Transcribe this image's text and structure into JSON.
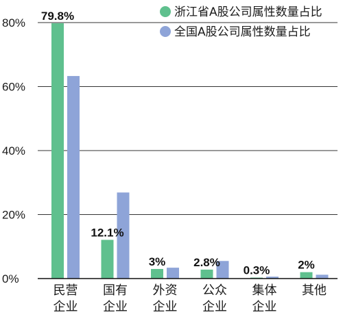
{
  "chart_data": {
    "type": "bar",
    "categories": [
      [
        "民营",
        "企业"
      ],
      [
        "国有",
        "企业"
      ],
      [
        "外资",
        "企业"
      ],
      [
        "公众",
        "企业"
      ],
      [
        "集体",
        "企业"
      ],
      [
        "其他"
      ]
    ],
    "series": [
      {
        "name": "浙江省A股公司属性数量占比",
        "color": "#5fc08e",
        "values": [
          79.8,
          12.1,
          3,
          2.8,
          0.3,
          2
        ],
        "labels": [
          "79.8%",
          "12.1%",
          "3%",
          "2.8%",
          "0.3%",
          "2%"
        ]
      },
      {
        "name": "全国A股公司属性数量占比",
        "color": "#8ea4d8",
        "values": [
          63.3,
          26.9,
          3.4,
          5.5,
          0.6,
          1.2
        ]
      }
    ],
    "yticks": [
      "0%",
      "20%",
      "40%",
      "60%",
      "80%"
    ],
    "ylim": [
      0,
      80
    ],
    "grid": true,
    "legend": "top-right"
  }
}
